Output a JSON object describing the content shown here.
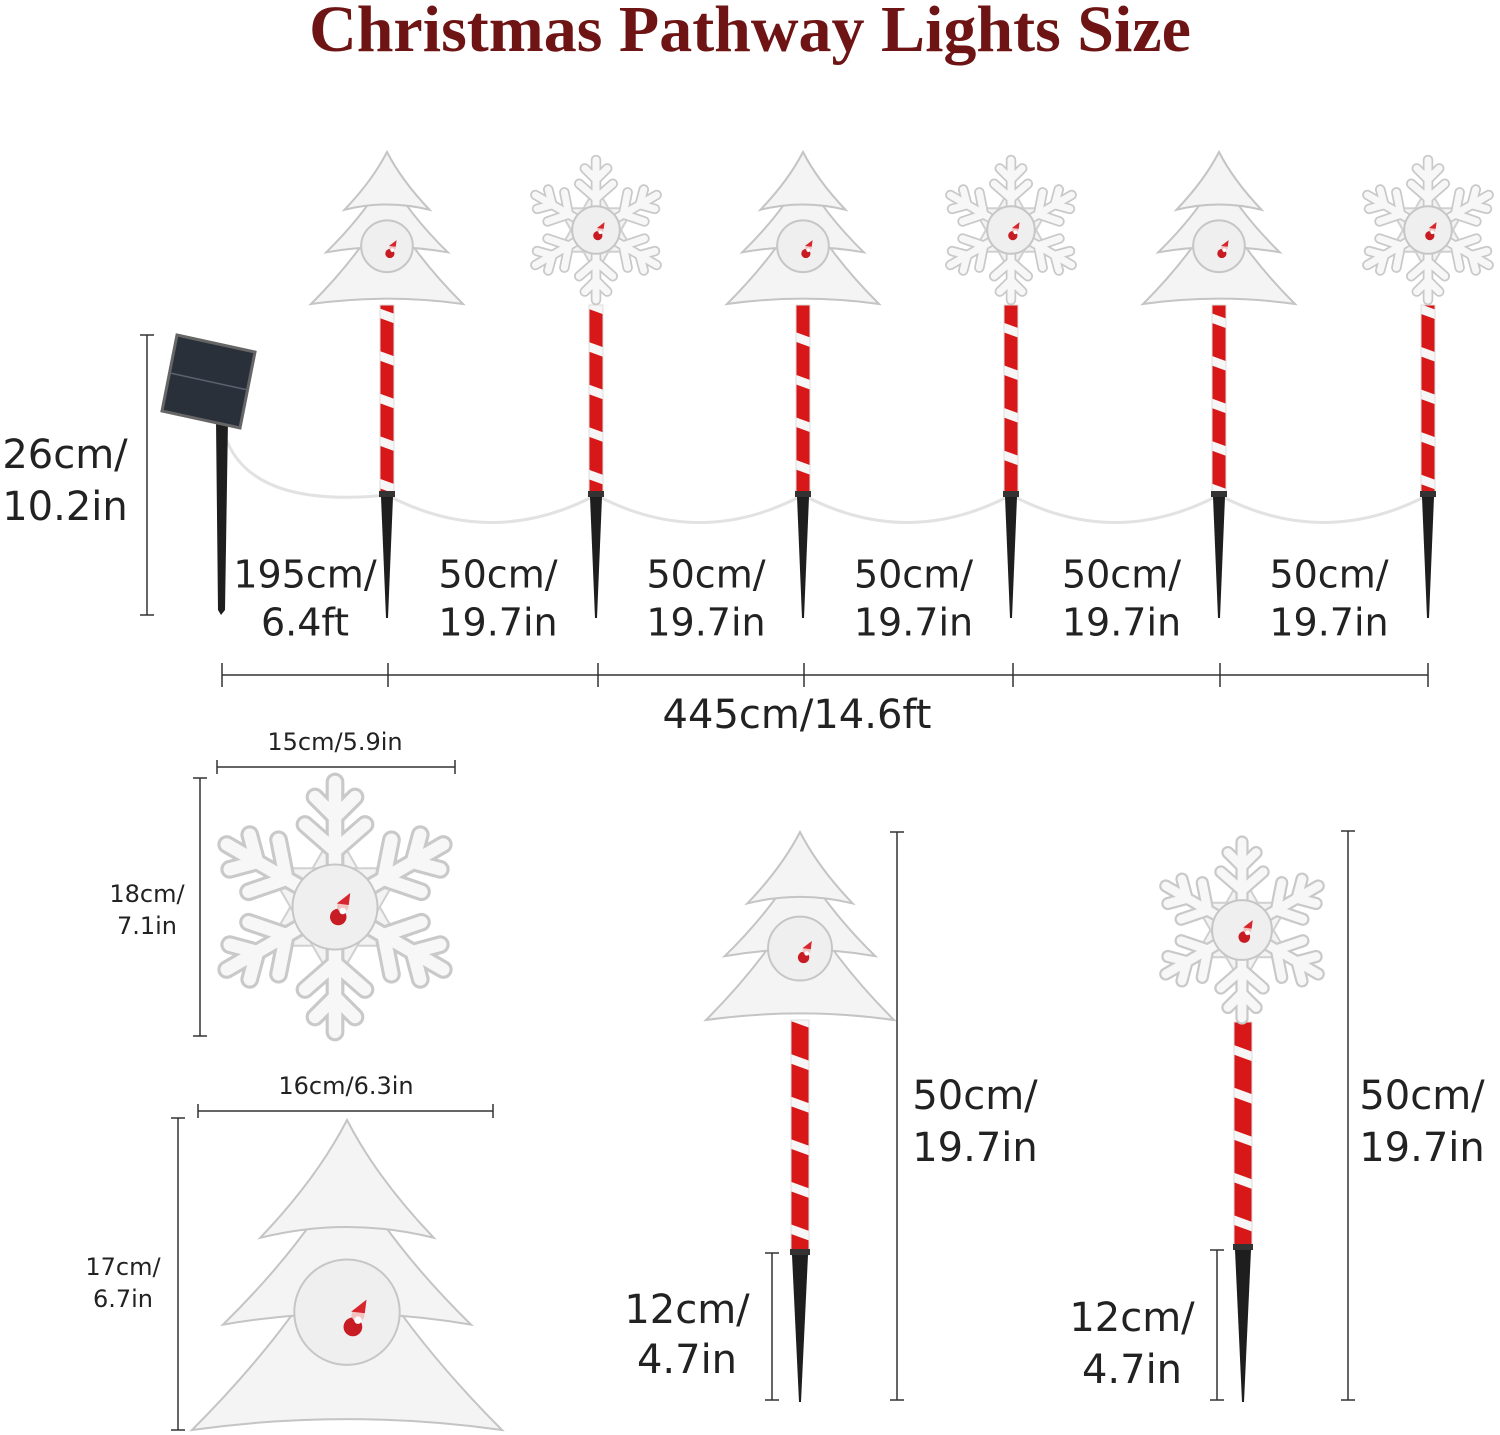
{
  "title": "Christmas Pathway Lights Size",
  "overview": {
    "height": [
      "26cm/",
      "10.2in"
    ],
    "spacings": [
      [
        "195cm/",
        "6.4ft"
      ],
      [
        "50cm/",
        "19.7in"
      ],
      [
        "50cm/",
        "19.7in"
      ],
      [
        "50cm/",
        "19.7in"
      ],
      [
        "50cm/",
        "19.7in"
      ],
      [
        "50cm/",
        "19.7in"
      ]
    ],
    "total": "445cm/14.6ft"
  },
  "snowflake": {
    "width": "15cm/5.9in",
    "height": [
      "18cm/",
      "7.1in"
    ]
  },
  "tree": {
    "width": "16cm/6.3in",
    "height": [
      "17cm/",
      "6.7in"
    ]
  },
  "stakes": [
    {
      "height": [
        "50cm/",
        "19.7in"
      ],
      "spike": [
        "12cm/",
        "4.7in"
      ]
    },
    {
      "height": [
        "50cm/",
        "19.7in"
      ],
      "spike": [
        "12cm/",
        "4.7in"
      ]
    }
  ]
}
